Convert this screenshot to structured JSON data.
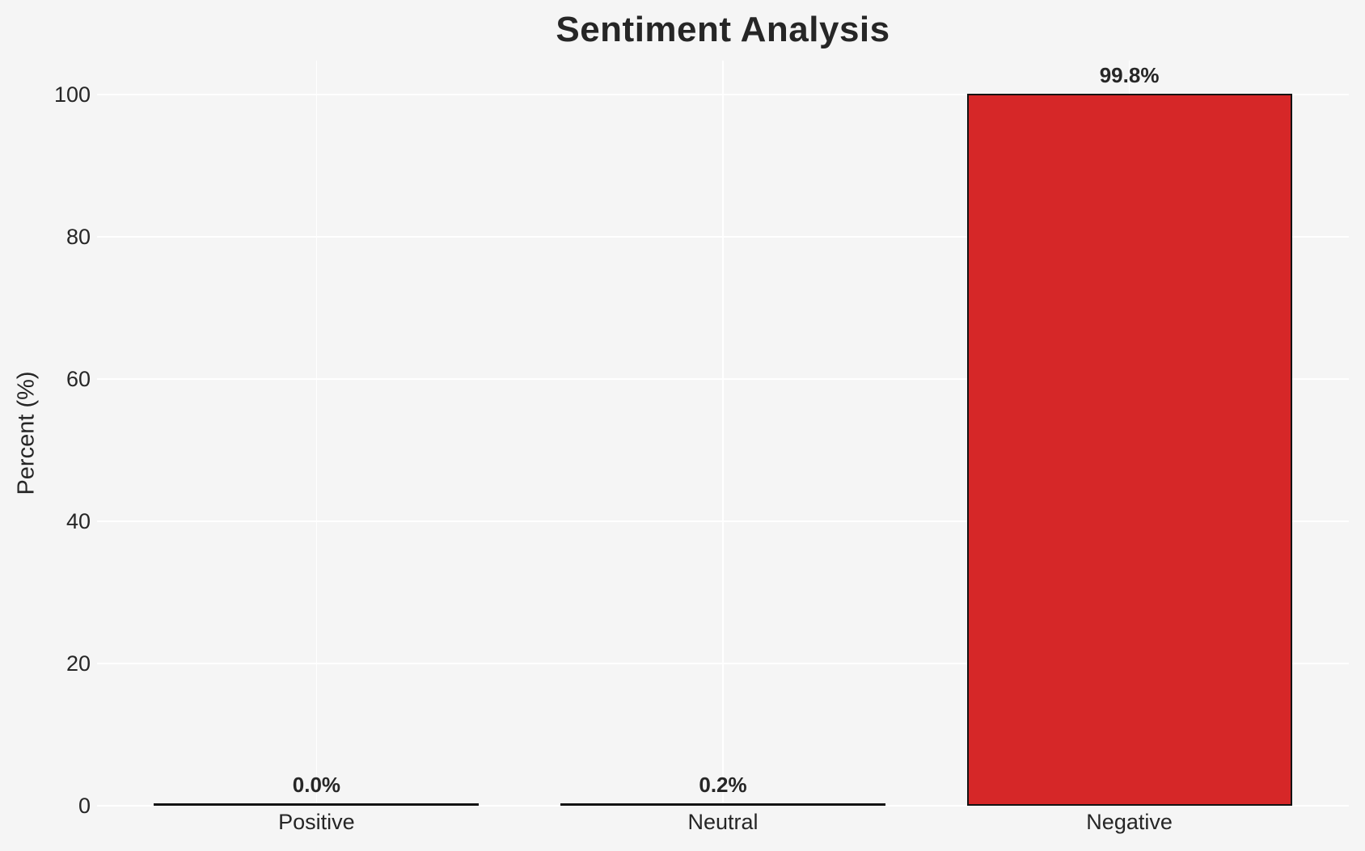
{
  "figure": {
    "background_color": "#f5f5f5",
    "gridline_color": "#ffffff",
    "text_color": "#262626"
  },
  "chart_data": {
    "type": "bar",
    "title": "Sentiment Analysis",
    "xlabel": "",
    "ylabel": "Percent (%)",
    "categories": [
      "Positive",
      "Neutral",
      "Negative"
    ],
    "values": [
      0.0,
      0.2,
      99.8
    ],
    "bar_value_labels": [
      "0.0%",
      "0.2%",
      "99.8%"
    ],
    "ytick_labels": [
      "0",
      "20",
      "40",
      "60",
      "80",
      "100"
    ],
    "ytick_values": [
      0,
      20,
      40,
      60,
      80,
      100
    ],
    "ylim": [
      0,
      104.8
    ],
    "xlim": [
      -0.54,
      2.54
    ],
    "bar_width_units": 0.8,
    "grid": true,
    "legend_position": "none",
    "bar_fill_colors": [
      "none",
      "none",
      "#d62728"
    ],
    "bar_edge_color": "#121212"
  }
}
